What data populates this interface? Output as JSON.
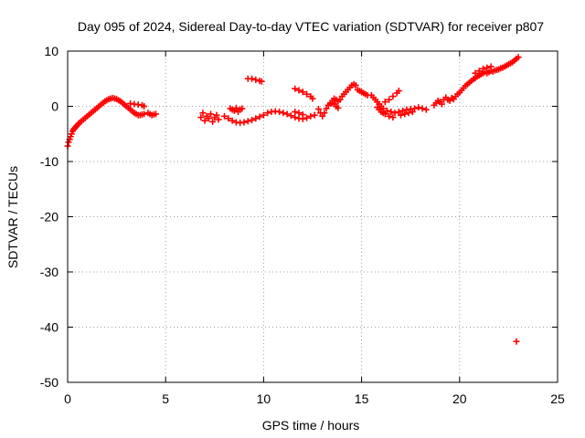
{
  "chart_data": {
    "type": "scatter",
    "title": "Day 095 of 2024, Sidereal Day-to-day VTEC variation (SDTVAR) for receiver p807",
    "xlabel": "GPS time / hours",
    "ylabel": "SDTVAR / TECUs",
    "xlim": [
      0,
      25
    ],
    "ylim": [
      -50,
      10
    ],
    "xticks": [
      0,
      5,
      10,
      15,
      20,
      25
    ],
    "yticks": [
      -50,
      -40,
      -30,
      -20,
      -10,
      0,
      10
    ],
    "grid": true,
    "marker": "+",
    "color": "#ff0000",
    "series": [
      {
        "name": "SDTVAR",
        "points": [
          [
            0.0,
            -7.2
          ],
          [
            0.05,
            -6.5
          ],
          [
            0.1,
            -6.0
          ],
          [
            0.15,
            -5.5
          ],
          [
            0.2,
            -5.0
          ],
          [
            0.25,
            -4.5
          ],
          [
            0.3,
            -4.2
          ],
          [
            0.35,
            -4.0
          ],
          [
            0.4,
            -3.8
          ],
          [
            0.45,
            -3.6
          ],
          [
            0.5,
            -3.4
          ],
          [
            0.55,
            -3.2
          ],
          [
            0.6,
            -3.0
          ],
          [
            0.7,
            -2.7
          ],
          [
            0.8,
            -2.4
          ],
          [
            0.9,
            -2.1
          ],
          [
            1.0,
            -1.8
          ],
          [
            1.1,
            -1.5
          ],
          [
            1.2,
            -1.2
          ],
          [
            1.3,
            -0.9
          ],
          [
            1.4,
            -0.6
          ],
          [
            1.5,
            -0.3
          ],
          [
            1.6,
            0.0
          ],
          [
            1.7,
            0.3
          ],
          [
            1.8,
            0.6
          ],
          [
            1.9,
            0.9
          ],
          [
            2.0,
            1.1
          ],
          [
            2.1,
            1.3
          ],
          [
            2.2,
            1.4
          ],
          [
            2.3,
            1.5
          ],
          [
            2.4,
            1.4
          ],
          [
            2.5,
            1.3
          ],
          [
            2.6,
            1.1
          ],
          [
            2.7,
            0.9
          ],
          [
            2.8,
            0.6
          ],
          [
            2.9,
            0.3
          ],
          [
            3.0,
            0.0
          ],
          [
            3.1,
            -0.3
          ],
          [
            3.2,
            -0.6
          ],
          [
            3.3,
            -0.9
          ],
          [
            3.4,
            -1.2
          ],
          [
            3.5,
            -1.4
          ],
          [
            3.6,
            -1.6
          ],
          [
            3.7,
            -1.6
          ],
          [
            3.8,
            -1.5
          ],
          [
            3.9,
            -1.4
          ],
          [
            3.2,
            0.5
          ],
          [
            3.4,
            0.4
          ],
          [
            3.6,
            0.3
          ],
          [
            3.8,
            0.2
          ],
          [
            3.9,
            0.0
          ],
          [
            4.1,
            -1.2
          ],
          [
            4.2,
            -1.4
          ],
          [
            4.3,
            -1.6
          ],
          [
            4.4,
            -1.5
          ],
          [
            4.5,
            -1.4
          ],
          [
            6.8,
            -2.0
          ],
          [
            6.9,
            -1.2
          ],
          [
            7.0,
            -2.6
          ],
          [
            7.1,
            -1.8
          ],
          [
            7.2,
            -2.2
          ],
          [
            7.3,
            -1.4
          ],
          [
            7.4,
            -2.8
          ],
          [
            7.5,
            -2.0
          ],
          [
            7.6,
            -1.6
          ],
          [
            7.7,
            -2.4
          ],
          [
            8.3,
            -0.4
          ],
          [
            8.4,
            -0.6
          ],
          [
            8.5,
            -0.8
          ],
          [
            8.6,
            -0.3
          ],
          [
            8.7,
            -1.0
          ],
          [
            8.8,
            -0.6
          ],
          [
            8.9,
            -0.4
          ],
          [
            8.0,
            -1.8
          ],
          [
            8.2,
            -2.2
          ],
          [
            8.4,
            -2.6
          ],
          [
            8.6,
            -2.9
          ],
          [
            8.8,
            -3.0
          ],
          [
            9.0,
            -2.9
          ],
          [
            9.2,
            -2.7
          ],
          [
            9.4,
            -2.5
          ],
          [
            9.6,
            -2.2
          ],
          [
            9.8,
            -1.9
          ],
          [
            10.0,
            -1.6
          ],
          [
            9.2,
            5.0
          ],
          [
            9.4,
            5.0
          ],
          [
            9.6,
            4.8
          ],
          [
            9.8,
            4.6
          ],
          [
            9.9,
            4.5
          ],
          [
            10.2,
            -1.2
          ],
          [
            10.4,
            -1.0
          ],
          [
            10.6,
            -0.9
          ],
          [
            10.8,
            -1.0
          ],
          [
            11.0,
            -1.2
          ],
          [
            11.2,
            -1.4
          ],
          [
            11.4,
            -1.7
          ],
          [
            11.6,
            -2.0
          ],
          [
            11.8,
            -2.2
          ],
          [
            12.0,
            -2.3
          ],
          [
            12.2,
            -2.1
          ],
          [
            12.4,
            -1.8
          ],
          [
            12.6,
            -1.6
          ],
          [
            11.6,
            -1.0
          ],
          [
            11.8,
            -1.2
          ],
          [
            12.0,
            -1.5
          ],
          [
            11.6,
            3.2
          ],
          [
            11.8,
            2.9
          ],
          [
            12.0,
            2.6
          ],
          [
            12.2,
            2.2
          ],
          [
            12.4,
            1.8
          ],
          [
            12.5,
            1.4
          ],
          [
            12.8,
            -0.5
          ],
          [
            12.9,
            -1.2
          ],
          [
            13.0,
            -1.8
          ],
          [
            13.1,
            -1.2
          ],
          [
            13.2,
            -0.4
          ],
          [
            13.3,
            0.2
          ],
          [
            13.4,
            0.5
          ],
          [
            13.5,
            0.6
          ],
          [
            13.6,
            0.4
          ],
          [
            13.7,
            0.0
          ],
          [
            13.8,
            -0.3
          ],
          [
            13.5,
            1.0
          ],
          [
            13.6,
            1.4
          ],
          [
            13.7,
            1.2
          ],
          [
            13.8,
            0.9
          ],
          [
            13.9,
            1.2
          ],
          [
            14.0,
            1.8
          ],
          [
            14.1,
            2.2
          ],
          [
            14.2,
            2.6
          ],
          [
            14.3,
            3.0
          ],
          [
            14.4,
            3.4
          ],
          [
            14.5,
            3.8
          ],
          [
            14.6,
            4.0
          ],
          [
            14.7,
            3.8
          ],
          [
            14.8,
            3.0
          ],
          [
            14.9,
            2.8
          ],
          [
            15.0,
            2.6
          ],
          [
            15.1,
            2.4
          ],
          [
            15.2,
            2.2
          ],
          [
            15.3,
            2.0
          ],
          [
            15.5,
            2.0
          ],
          [
            15.6,
            1.6
          ],
          [
            15.7,
            1.2
          ],
          [
            15.8,
            0.8
          ],
          [
            15.9,
            0.4
          ],
          [
            16.0,
            0.0
          ],
          [
            16.1,
            -0.4
          ],
          [
            15.8,
            -0.2
          ],
          [
            15.9,
            -0.6
          ],
          [
            16.0,
            -1.0
          ],
          [
            16.2,
            -1.4
          ],
          [
            16.4,
            -1.8
          ],
          [
            16.6,
            -2.0
          ],
          [
            16.2,
            0.8
          ],
          [
            16.4,
            1.2
          ],
          [
            16.6,
            1.8
          ],
          [
            16.8,
            2.4
          ],
          [
            16.9,
            2.8
          ],
          [
            16.1,
            -1.2
          ],
          [
            16.3,
            -0.8
          ],
          [
            16.5,
            -1.0
          ],
          [
            16.7,
            -1.2
          ],
          [
            16.9,
            -1.0
          ],
          [
            17.1,
            -0.8
          ],
          [
            17.3,
            -0.6
          ],
          [
            17.5,
            -0.5
          ],
          [
            17.7,
            -0.4
          ],
          [
            17.9,
            -0.2
          ],
          [
            18.1,
            -0.4
          ],
          [
            18.3,
            -0.6
          ],
          [
            17.0,
            -1.6
          ],
          [
            17.2,
            -1.4
          ],
          [
            17.4,
            -1.2
          ],
          [
            17.6,
            -1.0
          ],
          [
            18.7,
            0.2
          ],
          [
            18.8,
            0.6
          ],
          [
            18.9,
            1.0
          ],
          [
            19.0,
            0.8
          ],
          [
            19.1,
            0.4
          ],
          [
            19.2,
            1.2
          ],
          [
            19.3,
            1.6
          ],
          [
            19.4,
            1.2
          ],
          [
            19.5,
            1.0
          ],
          [
            19.6,
            1.5
          ],
          [
            19.7,
            1.3
          ],
          [
            19.8,
            1.8
          ],
          [
            19.9,
            2.2
          ],
          [
            20.0,
            2.5
          ],
          [
            20.1,
            2.9
          ],
          [
            20.2,
            3.3
          ],
          [
            20.3,
            3.7
          ],
          [
            20.4,
            4.0
          ],
          [
            20.5,
            4.3
          ],
          [
            20.6,
            4.6
          ],
          [
            20.7,
            4.9
          ],
          [
            20.8,
            5.1
          ],
          [
            20.9,
            5.4
          ],
          [
            21.0,
            5.6
          ],
          [
            21.1,
            5.8
          ],
          [
            21.2,
            6.0
          ],
          [
            21.3,
            6.2
          ],
          [
            21.4,
            6.0
          ],
          [
            21.5,
            6.2
          ],
          [
            21.6,
            6.4
          ],
          [
            21.7,
            6.3
          ],
          [
            21.8,
            6.5
          ],
          [
            21.9,
            6.6
          ],
          [
            22.0,
            6.7
          ],
          [
            22.1,
            6.9
          ],
          [
            22.2,
            7.0
          ],
          [
            22.3,
            7.2
          ],
          [
            22.4,
            7.4
          ],
          [
            22.5,
            7.6
          ],
          [
            22.6,
            7.8
          ],
          [
            22.7,
            8.0
          ],
          [
            22.8,
            8.3
          ],
          [
            22.9,
            8.6
          ],
          [
            23.0,
            8.9
          ],
          [
            20.8,
            6.0
          ],
          [
            21.0,
            6.4
          ],
          [
            21.2,
            6.8
          ],
          [
            21.4,
            7.0
          ],
          [
            21.6,
            7.2
          ],
          [
            22.9,
            -42.6
          ]
        ]
      }
    ]
  }
}
